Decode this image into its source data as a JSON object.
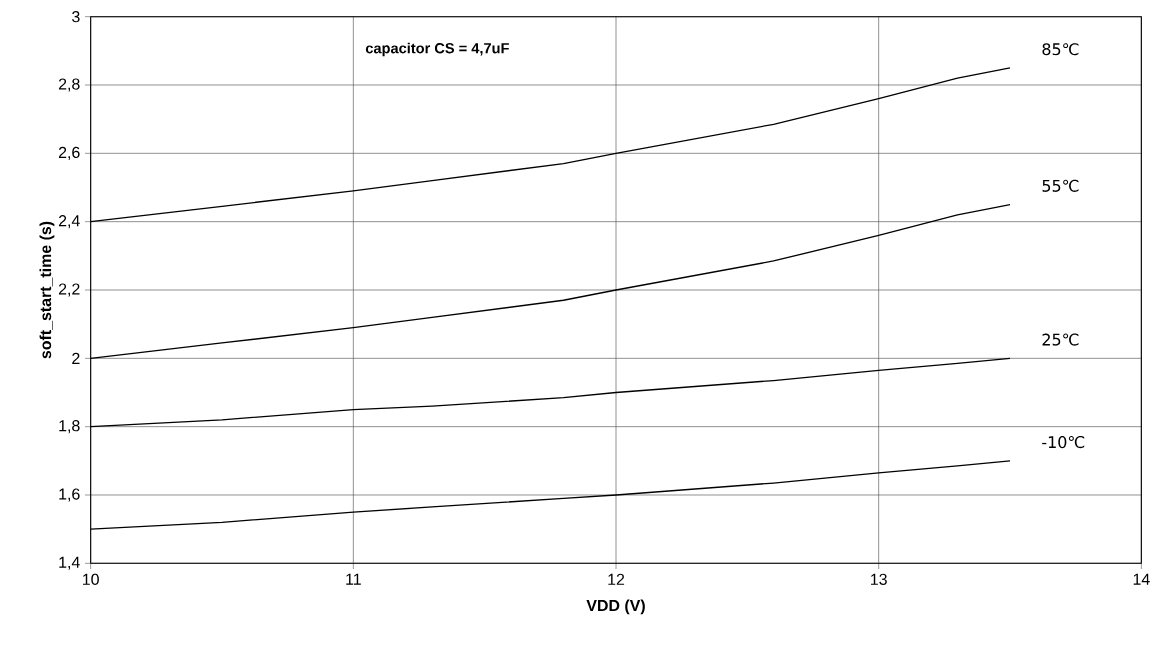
{
  "chart_data": {
    "type": "line",
    "xlabel": "VDD  (V)",
    "ylabel": "soft_start_time  (s)",
    "annotations": [
      "capacitor CS = 4,7uF"
    ],
    "x": [
      10,
      10.5,
      11,
      11.3,
      11.8,
      12,
      12.6,
      13,
      13.3,
      13.5
    ],
    "series": [
      {
        "name": "85℃",
        "color": "#000000",
        "values": [
          2.4,
          2.445,
          2.49,
          2.52,
          2.57,
          2.6,
          2.685,
          2.76,
          2.82,
          2.85
        ]
      },
      {
        "name": "55℃",
        "color": "#000000",
        "values": [
          2.0,
          2.045,
          2.09,
          2.12,
          2.17,
          2.2,
          2.285,
          2.36,
          2.42,
          2.45
        ]
      },
      {
        "name": "25℃",
        "color": "#000000",
        "values": [
          1.8,
          1.82,
          1.85,
          1.86,
          1.885,
          1.9,
          1.935,
          1.965,
          1.985,
          2.0
        ]
      },
      {
        "name": "-10℃",
        "color": "#000000",
        "values": [
          1.5,
          1.52,
          1.55,
          1.565,
          1.59,
          1.6,
          1.635,
          1.665,
          1.685,
          1.7
        ]
      }
    ],
    "xlim": [
      10,
      14
    ],
    "xticks": [
      10,
      11,
      12,
      13,
      14
    ],
    "ylim": [
      1.4,
      3
    ],
    "yticks": [
      {
        "value": 1.4,
        "label": "1,4"
      },
      {
        "value": 1.6,
        "label": "1,6"
      },
      {
        "value": 1.8,
        "label": "1,8"
      },
      {
        "value": 2,
        "label": "2"
      },
      {
        "value": 2.2,
        "label": "2,2"
      },
      {
        "value": 2.4,
        "label": "2,4"
      },
      {
        "value": 2.6,
        "label": "2,6"
      },
      {
        "value": 2.8,
        "label": "2,8"
      },
      {
        "value": 3,
        "label": "3"
      }
    ],
    "grid": true,
    "legend": false,
    "marker": "none",
    "line_style": "solid"
  }
}
